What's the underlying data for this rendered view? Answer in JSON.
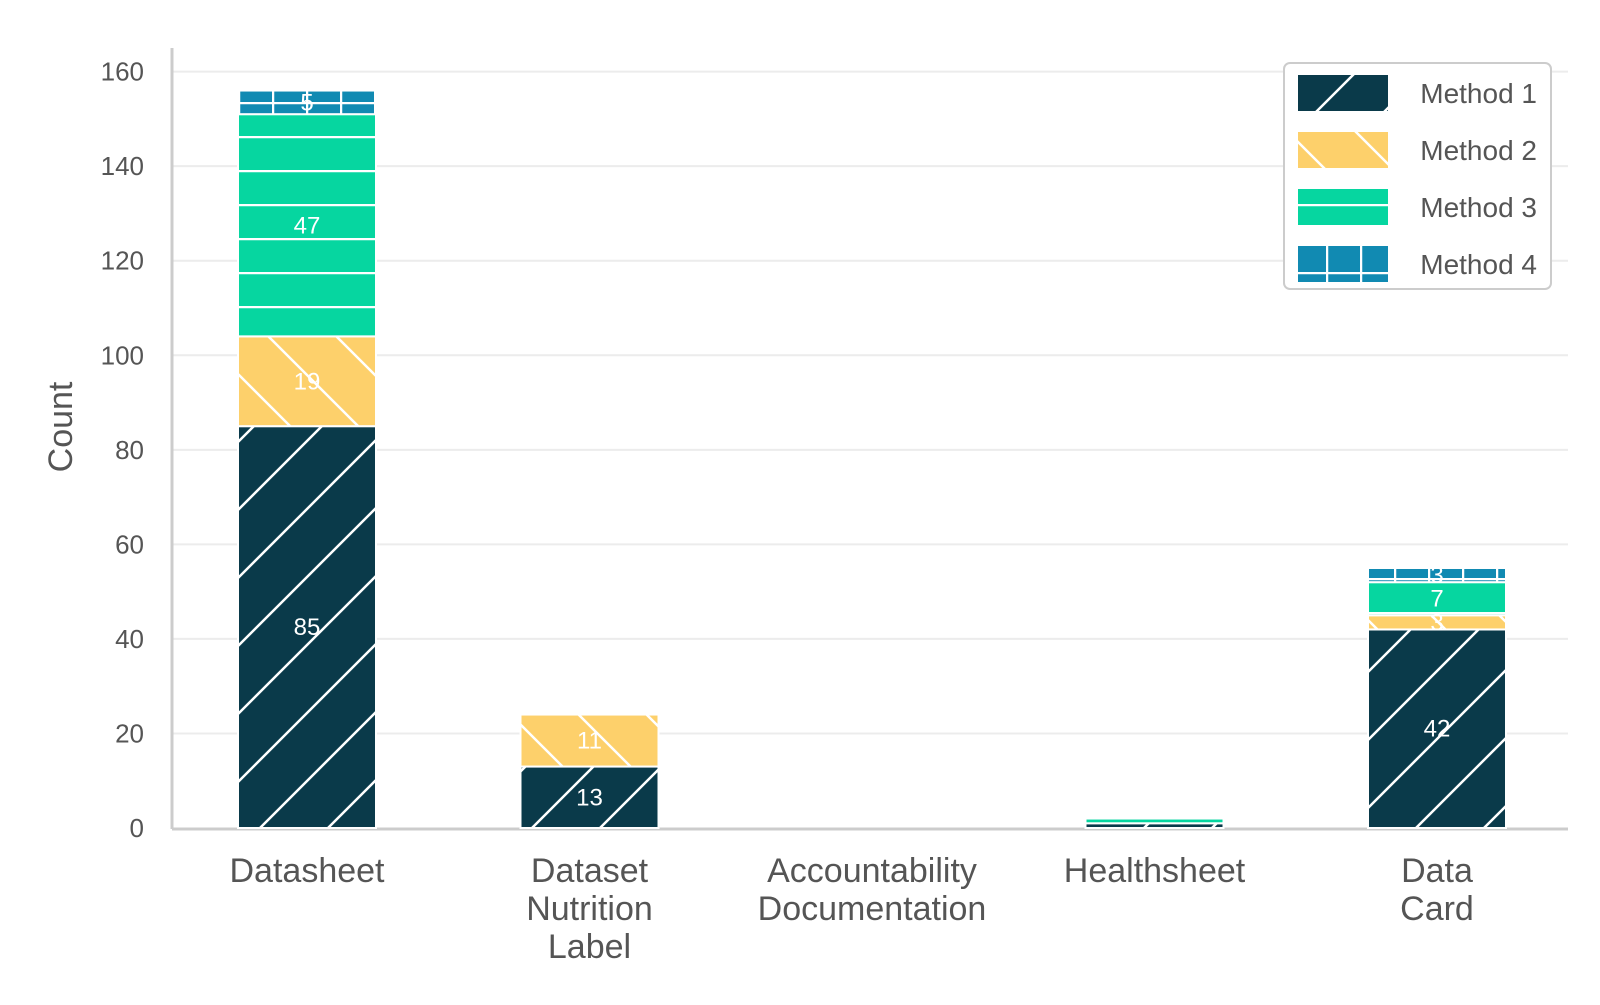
{
  "chart_data": {
    "type": "bar",
    "stacked": true,
    "categories": [
      [
        "Datasheet"
      ],
      [
        "Dataset",
        "Nutrition",
        "Label"
      ],
      [
        "Accountability",
        "Documentation"
      ],
      [
        "Healthsheet"
      ],
      [
        "Data",
        "Card"
      ]
    ],
    "series": [
      {
        "name": "Method 1",
        "color": "#0a3a4a",
        "hatch": "diagonal-forward",
        "values": [
          85,
          13,
          0,
          1,
          42
        ],
        "labels": [
          "85",
          "13",
          "",
          "",
          "42"
        ]
      },
      {
        "name": "Method 2",
        "color": "#fdd06b",
        "hatch": "diagonal-backward",
        "values": [
          19,
          11,
          0,
          0,
          3
        ],
        "labels": [
          "19",
          "11",
          "",
          "",
          "3"
        ]
      },
      {
        "name": "Method 3",
        "color": "#06d6a0",
        "hatch": "horizontal",
        "values": [
          47,
          0,
          0,
          1,
          7
        ],
        "labels": [
          "47",
          "",
          "",
          "",
          "7"
        ]
      },
      {
        "name": "Method 4",
        "color": "#118ab2",
        "hatch": "grid",
        "values": [
          5,
          0,
          0,
          0,
          3
        ],
        "labels": [
          "5",
          "",
          "",
          "",
          "3"
        ]
      }
    ],
    "ylabel": "Count",
    "ylim": [
      0,
      165
    ],
    "yticks": [
      "0",
      "20",
      "40",
      "60",
      "80",
      "100",
      "120",
      "140",
      "160"
    ],
    "grid": true,
    "legend_position": "top-right"
  }
}
